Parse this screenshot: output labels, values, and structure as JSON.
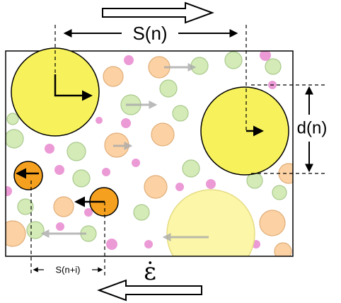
{
  "labels": {
    "s_n": "S(n)",
    "d_n": "d(n)",
    "s_n_i": "S(n+i)",
    "strain_rate": "ε̇"
  }
}
